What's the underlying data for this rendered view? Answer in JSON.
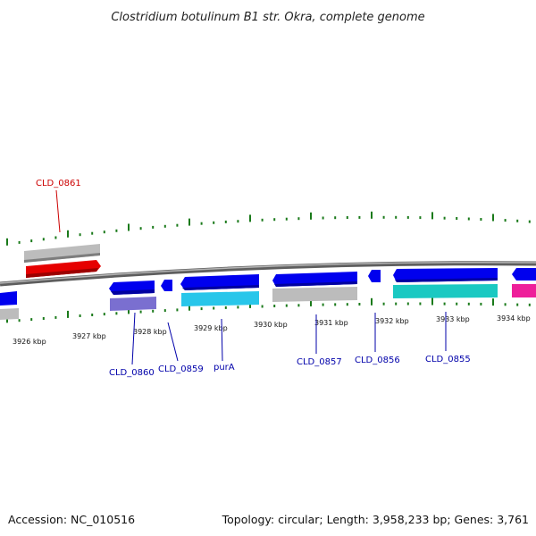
{
  "title": "Clostridium botulinum B1 str. Okra, complete genome",
  "footer": {
    "accession": "Accession: NC_010516",
    "topology": "Topology: circular; Length: 3,958,233 bp; Genes: 3,761"
  },
  "kbp_labels": [
    "3926 kbp",
    "3927 kbp",
    "3928 kbp",
    "3929 kbp",
    "3930 kbp",
    "3931 kbp",
    "3932 kbp",
    "3933 kbp",
    "3934 kbp"
  ],
  "gene_labels": [
    "CLD_0861",
    "CLD_0860",
    "CLD_0859",
    "purA",
    "CLD_0857",
    "CLD_0856",
    "CLD_0855"
  ],
  "colors": {
    "forward_gene": "#e60000",
    "reverse_gene": "#0000ee",
    "forward_label": "#cc0000",
    "reverse_label": "#0000aa",
    "tick": "#1a7a1a",
    "backbone": "#888888",
    "gc_grey": "#bdbdbd",
    "gc_purple": "#7a6fd0",
    "gc_cyan": "#28c6ea",
    "gc_teal": "#1ac9c2",
    "gc_pink": "#ee1f9a"
  }
}
